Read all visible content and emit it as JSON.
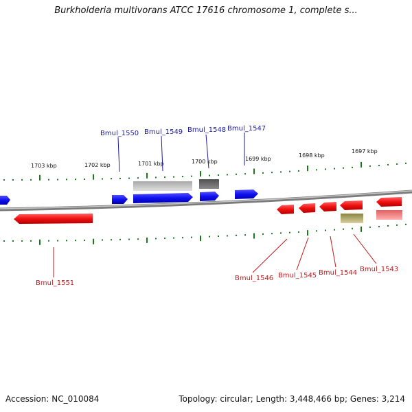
{
  "title": "Burkholderia multivorans ATCC 17616 chromosome 1, complete s...",
  "footer": {
    "accession": "Accession: NC_010084",
    "summary": "Topology: circular; Length: 3,448,466 bp; Genes: 3,214"
  },
  "scale_labels": [
    "1703 kbp",
    "1702 kbp",
    "1701 kbp",
    "1700 kbp",
    "1699 kbp",
    "1698 kbp",
    "1697 kbp"
  ],
  "genes_top": [
    {
      "name": "Bmul_1550"
    },
    {
      "name": "Bmul_1549"
    },
    {
      "name": "Bmul_1548"
    },
    {
      "name": "Bmul_1547"
    }
  ],
  "genes_bottom": [
    {
      "name": "Bmul_1551"
    },
    {
      "name": "Bmul_1546"
    },
    {
      "name": "Bmul_1545"
    },
    {
      "name": "Bmul_1544"
    },
    {
      "name": "Bmul_1543"
    }
  ],
  "colors": {
    "forward": "#1010f0",
    "reverse": "#f01010",
    "backbone": "#8a8a8a",
    "ticks": "#1a7a1a",
    "label_blue": "#1a1a9a",
    "label_red": "#c01818"
  }
}
